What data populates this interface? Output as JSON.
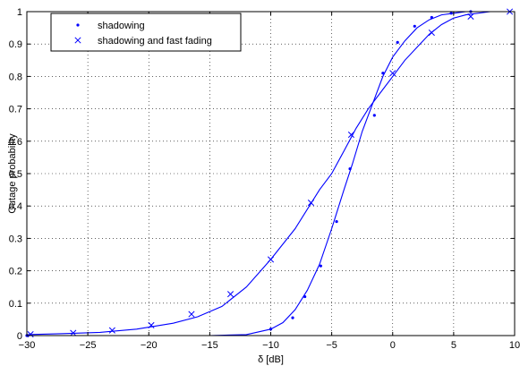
{
  "chart_data": {
    "type": "line",
    "xlabel": "δ [dB]",
    "ylabel": "Outage probability",
    "xlim": [
      -30,
      10
    ],
    "ylim": [
      0,
      1
    ],
    "x_ticks": [
      -30,
      -25,
      -20,
      -15,
      -10,
      -5,
      0,
      5,
      10
    ],
    "y_ticks": [
      0,
      0.1,
      0.2,
      0.3,
      0.4,
      0.5,
      0.6,
      0.7,
      0.8,
      0.9,
      1
    ],
    "grid": true,
    "legend_position": "top-left",
    "line_color": "#0000ff",
    "series": [
      {
        "name": "shadowing",
        "marker": "dot",
        "x": [
          -30,
          -25,
          -20,
          -15,
          -12,
          -10,
          -9,
          -8,
          -7,
          -6,
          -5,
          -4,
          -3.3,
          -2.5,
          -1.5,
          -0.8,
          0,
          1,
          2,
          3,
          4,
          5,
          6,
          7,
          8,
          10
        ],
        "y": [
          0,
          0,
          0,
          0,
          0.003,
          0.02,
          0.04,
          0.08,
          0.14,
          0.22,
          0.33,
          0.45,
          0.53,
          0.63,
          0.73,
          0.8,
          0.86,
          0.91,
          0.95,
          0.975,
          0.99,
          0.995,
          1,
          1,
          1,
          1
        ],
        "markers_x": [
          -30,
          -10,
          -8.2,
          -7.2,
          -5.9,
          -4.6,
          -3.5,
          -1.5,
          -0.8,
          0.4,
          1.8,
          3.2,
          4.8,
          6.4
        ],
        "markers_y": [
          0,
          0.02,
          0.055,
          0.12,
          0.215,
          0.352,
          0.515,
          0.68,
          0.81,
          0.905,
          0.955,
          0.982,
          0.995,
          1
        ]
      },
      {
        "name": "shadowing and fast fading",
        "marker": "x",
        "x": [
          -30,
          -27,
          -24,
          -21,
          -18,
          -16,
          -14,
          -12,
          -10,
          -8,
          -6,
          -5,
          -4,
          -3,
          -2,
          -1,
          0,
          1,
          2,
          3,
          4,
          5,
          6,
          8,
          10
        ],
        "y": [
          0.003,
          0.006,
          0.01,
          0.02,
          0.038,
          0.058,
          0.09,
          0.15,
          0.235,
          0.33,
          0.45,
          0.5,
          0.57,
          0.64,
          0.7,
          0.75,
          0.8,
          0.85,
          0.89,
          0.93,
          0.96,
          0.98,
          0.99,
          1,
          1
        ],
        "markers_x": [
          -29.7,
          -26.2,
          -23,
          -19.8,
          -16.5,
          -13.3,
          -10,
          -6.7,
          -3.4,
          0,
          3.2,
          6.4,
          9.6
        ],
        "markers_y": [
          0.004,
          0.008,
          0.016,
          0.032,
          0.066,
          0.128,
          0.235,
          0.41,
          0.62,
          0.81,
          0.935,
          0.985,
          1
        ]
      }
    ]
  }
}
